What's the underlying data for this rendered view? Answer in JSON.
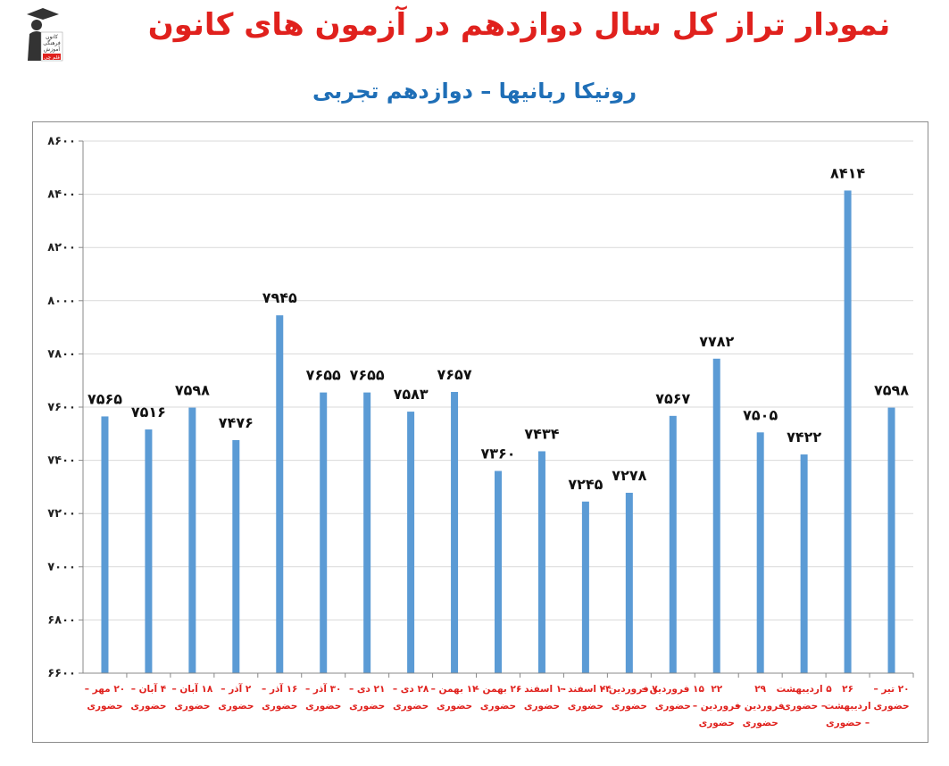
{
  "title": "نمودار تراز کل سال دوازدهم در آزمون های کانون",
  "subtitle": "رونیکا ربانیها – دوازدهم تجربی",
  "logo": {
    "lines": [
      "کانون",
      "فرهنگی",
      "آموزش",
      "قلم چی"
    ],
    "colors": {
      "dark": "#333333",
      "accent": "#e0211d"
    }
  },
  "colors": {
    "bar": "#5b9bd5",
    "title": "#e0211d",
    "subtitle": "#1f6fb7",
    "xlabel": "#e0211d",
    "grid": "#d9d9d9"
  },
  "chart_data": {
    "type": "bar",
    "title": "نمودار تراز کل سال دوازدهم در آزمون های کانون",
    "subtitle": "رونیکا ربانیها – دوازدهم تجربی",
    "ylim": [
      6600,
      8600
    ],
    "yticks": [
      6600,
      6800,
      7000,
      7200,
      7400,
      7600,
      7800,
      8000,
      8200,
      8400,
      8600
    ],
    "ytick_labels": [
      "۶۶۰۰",
      "۶۸۰۰",
      "۷۰۰۰",
      "۷۲۰۰",
      "۷۴۰۰",
      "۷۶۰۰",
      "۷۸۰۰",
      "۸۰۰۰",
      "۸۲۰۰",
      "۸۴۰۰",
      "۸۶۰۰"
    ],
    "grid": true,
    "categories": [
      [
        "۲۰ مهر –",
        "حضوری"
      ],
      [
        "۴ آبان –",
        "حضوری"
      ],
      [
        "۱۸ آبان –",
        "حضوری"
      ],
      [
        "۲ آذر –",
        "حضوری"
      ],
      [
        "۱۶ آذر –",
        "حضوری"
      ],
      [
        "۳۰ آذر –",
        "حضوری"
      ],
      [
        "۲۱ دی –",
        "حضوری"
      ],
      [
        "۲۸ دی –",
        "حضوری"
      ],
      [
        "۱۲ بهمن –",
        "حضوری"
      ],
      [
        "۲۶ بهمن –",
        "حضوری"
      ],
      [
        "۱۰ اسفند –",
        "حضوری"
      ],
      [
        "۲۴ اسفند –",
        "حضوری"
      ],
      [
        "۷ فروردین –",
        "حضوری"
      ],
      [
        "۱۵ فروردین –",
        "حضوری"
      ],
      [
        "۲۲",
        "فروردین –",
        "حضوری"
      ],
      [
        "۲۹",
        "فروردین –",
        "حضوری"
      ],
      [
        "۵ اردیبهشت",
        "– حضوری"
      ],
      [
        "۲۶",
        "اردیبهشت",
        "– حضوری"
      ],
      [
        "۲۰ تیر –",
        "حضوری"
      ]
    ],
    "values": [
      7565,
      7516,
      7598,
      7476,
      7945,
      7655,
      7655,
      7583,
      7657,
      7360,
      7434,
      7245,
      7278,
      7567,
      7782,
      7505,
      7422,
      8414,
      7598
    ],
    "value_labels": [
      "۷۵۶۵",
      "۷۵۱۶",
      "۷۵۹۸",
      "۷۴۷۶",
      "۷۹۴۵",
      "۷۶۵۵",
      "۷۶۵۵",
      "۷۵۸۳",
      "۷۶۵۷",
      "۷۳۶۰",
      "۷۴۳۴",
      "۷۲۴۵",
      "۷۲۷۸",
      "۷۵۶۷",
      "۷۷۸۲",
      "۷۵۰۵",
      "۷۴۲۲",
      "۸۴۱۴",
      "۷۵۹۸"
    ]
  }
}
